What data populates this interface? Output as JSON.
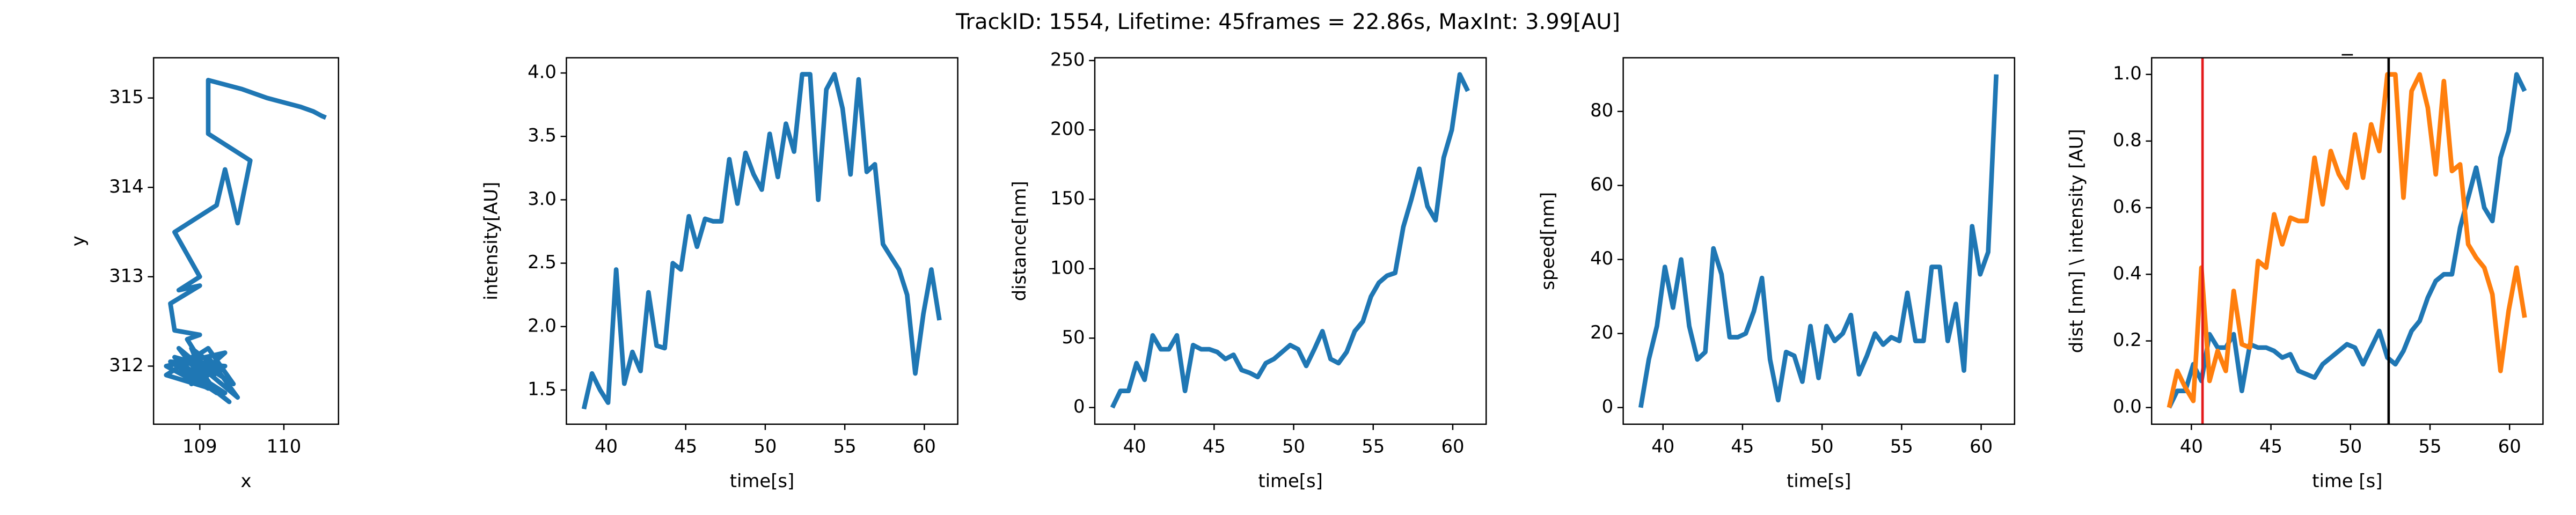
{
  "title": "TrackID: 1554, Lifetime: 45frames = 22.86s, MaxInt: 3.99[AU]",
  "chart_data": [
    {
      "type": "line",
      "xlabel": "x",
      "ylabel": "y",
      "x": [
        109.2,
        108.7,
        109.35,
        108.8,
        109.3,
        108.6,
        109.1,
        109.4,
        108.9,
        109.2,
        108.65,
        109.3,
        108.9,
        109.1,
        109.45,
        108.75,
        109.0,
        109.3,
        108.6,
        109.1,
        108.9,
        109.25,
        108.7,
        109.05,
        108.85,
        109.0,
        108.7,
        108.65,
        109.0,
        108.75,
        109.0,
        108.7,
        109.2,
        109.3,
        109.45,
        109.6,
        109.1,
        109.1,
        109.5,
        109.8,
        110.0,
        110.2,
        110.35,
        110.45,
        110.5
      ],
      "series": [
        {
          "color": "#1f77b4",
          "values": [
            311.9,
            312.1,
            311.6,
            312.0,
            311.7,
            311.9,
            312.2,
            311.8,
            312.1,
            311.7,
            312.05,
            312.0,
            311.8,
            312.1,
            311.65,
            312.2,
            311.9,
            312.15,
            312.0,
            311.75,
            312.2,
            311.95,
            312.1,
            312.0,
            312.3,
            312.35,
            312.4,
            312.7,
            312.9,
            312.85,
            313.0,
            313.5,
            313.8,
            314.2,
            313.6,
            314.3,
            314.6,
            315.2,
            315.1,
            315.0,
            314.95,
            314.9,
            314.85,
            314.8,
            314.78
          ]
        }
      ],
      "xlim": [
        108.45,
        110.65
      ],
      "xticks": [
        109,
        110
      ],
      "ylim": [
        311.35,
        315.45
      ],
      "yticks": [
        312,
        313,
        314,
        315
      ]
    },
    {
      "type": "line",
      "xlabel": "time[s]",
      "ylabel": "intensity[AU]",
      "x": [
        38.6,
        39.11,
        39.62,
        40.12,
        40.63,
        41.14,
        41.65,
        42.16,
        42.66,
        43.17,
        43.68,
        44.19,
        44.7,
        45.2,
        45.71,
        46.22,
        46.73,
        47.24,
        47.74,
        48.25,
        48.76,
        49.27,
        49.78,
        50.28,
        50.79,
        51.3,
        51.81,
        52.32,
        52.82,
        53.33,
        53.84,
        54.35,
        54.86,
        55.36,
        55.87,
        56.38,
        56.89,
        57.4,
        57.9,
        58.41,
        58.92,
        59.43,
        59.94,
        60.44,
        60.95
      ],
      "series": [
        {
          "color": "#1f77b4",
          "values": [
            1.35,
            1.63,
            1.5,
            1.4,
            2.45,
            1.55,
            1.8,
            1.65,
            2.27,
            1.85,
            1.83,
            2.5,
            2.45,
            2.87,
            2.63,
            2.85,
            2.83,
            2.83,
            3.32,
            2.97,
            3.37,
            3.2,
            3.08,
            3.52,
            3.18,
            3.6,
            3.38,
            3.99,
            3.99,
            3.0,
            3.87,
            3.99,
            3.72,
            3.2,
            3.95,
            3.22,
            3.28,
            2.65,
            2.55,
            2.45,
            2.25,
            1.63,
            2.1,
            2.45,
            2.05
          ]
        }
      ],
      "xlim": [
        37.5,
        62.1
      ],
      "xticks": [
        40,
        45,
        50,
        55,
        60
      ],
      "ylim": [
        1.23,
        4.12
      ],
      "yticks": [
        1.5,
        {
          "value": 2,
          "label": "2.0"
        },
        2.5,
        {
          "value": 3,
          "label": "3.0"
        },
        3.5,
        {
          "value": 4,
          "label": "4.0"
        }
      ]
    },
    {
      "type": "line",
      "xlabel": "time[s]",
      "ylabel": "distance[nm]",
      "x": [
        38.6,
        39.11,
        39.62,
        40.12,
        40.63,
        41.14,
        41.65,
        42.16,
        42.66,
        43.17,
        43.68,
        44.19,
        44.7,
        45.2,
        45.71,
        46.22,
        46.73,
        47.24,
        47.74,
        48.25,
        48.76,
        49.27,
        49.78,
        50.28,
        50.79,
        51.3,
        51.81,
        52.32,
        52.82,
        53.33,
        53.84,
        54.35,
        54.86,
        55.36,
        55.87,
        56.38,
        56.89,
        57.4,
        57.9,
        58.41,
        58.92,
        59.43,
        59.94,
        60.44,
        60.95
      ],
      "series": [
        {
          "color": "#1f77b4",
          "values": [
            0,
            12,
            12,
            32,
            20,
            52,
            42,
            42,
            52,
            12,
            45,
            42,
            42,
            40,
            35,
            38,
            27,
            25,
            22,
            32,
            35,
            40,
            45,
            42,
            30,
            42,
            55,
            35,
            32,
            40,
            55,
            62,
            80,
            90,
            95,
            97,
            130,
            150,
            172,
            145,
            135,
            180,
            200,
            240,
            228
          ]
        }
      ],
      "xlim": [
        37.5,
        62.1
      ],
      "xticks": [
        40,
        45,
        50,
        55,
        60
      ],
      "ylim": [
        -12,
        252
      ],
      "yticks": [
        0,
        50,
        100,
        150,
        200,
        250
      ]
    },
    {
      "type": "line",
      "xlabel": "time[s]",
      "ylabel": "speed[nm]",
      "x": [
        38.6,
        39.11,
        39.62,
        40.12,
        40.63,
        41.14,
        41.65,
        42.16,
        42.66,
        43.17,
        43.68,
        44.19,
        44.7,
        45.2,
        45.71,
        46.22,
        46.73,
        47.24,
        47.74,
        48.25,
        48.76,
        49.27,
        49.78,
        50.28,
        50.79,
        51.3,
        51.81,
        52.32,
        52.82,
        53.33,
        53.84,
        54.35,
        54.86,
        55.36,
        55.87,
        56.38,
        56.89,
        57.4,
        57.9,
        58.41,
        58.92,
        59.43,
        59.94,
        60.44,
        60.95
      ],
      "series": [
        {
          "color": "#1f77b4",
          "values": [
            0,
            13,
            22,
            38,
            27,
            40,
            22,
            13,
            15,
            43,
            36,
            19,
            19,
            20,
            26,
            35,
            13,
            2,
            15,
            14,
            7,
            22,
            8,
            22,
            18,
            20,
            25,
            9,
            14,
            20,
            17,
            19,
            18,
            31,
            18,
            18,
            38,
            38,
            18,
            28,
            10,
            49,
            36,
            42,
            90
          ]
        }
      ],
      "xlim": [
        37.5,
        62.1
      ],
      "xticks": [
        40,
        45,
        50,
        55,
        60
      ],
      "ylim": [
        -4.5,
        94.5
      ],
      "yticks": [
        0,
        20,
        40,
        60,
        80
      ]
    },
    {
      "type": "line",
      "title": "_",
      "xlabel": "time [s]",
      "ylabel": "dist [nm] \\ intensity [AU]",
      "x": [
        38.6,
        39.11,
        39.62,
        40.12,
        40.63,
        41.14,
        41.65,
        42.16,
        42.66,
        43.17,
        43.68,
        44.19,
        44.7,
        45.2,
        45.71,
        46.22,
        46.73,
        47.24,
        47.74,
        48.25,
        48.76,
        49.27,
        49.78,
        50.28,
        50.79,
        51.3,
        51.81,
        52.32,
        52.82,
        53.33,
        53.84,
        54.35,
        54.86,
        55.36,
        55.87,
        56.38,
        56.89,
        57.4,
        57.9,
        58.41,
        58.92,
        59.43,
        59.94,
        60.44,
        60.95
      ],
      "series": [
        {
          "color": "#1f77b4",
          "values": [
            0,
            0.05,
            0.05,
            0.13,
            0.08,
            0.22,
            0.18,
            0.18,
            0.22,
            0.05,
            0.19,
            0.18,
            0.18,
            0.17,
            0.15,
            0.16,
            0.11,
            0.1,
            0.09,
            0.13,
            0.15,
            0.17,
            0.19,
            0.18,
            0.13,
            0.18,
            0.23,
            0.15,
            0.13,
            0.17,
            0.23,
            0.26,
            0.33,
            0.38,
            0.4,
            0.4,
            0.54,
            0.63,
            0.72,
            0.6,
            0.56,
            0.75,
            0.83,
            1.0,
            0.95
          ]
        },
        {
          "color": "#ff7f0e",
          "values": [
            0,
            0.11,
            0.06,
            0.02,
            0.42,
            0.08,
            0.17,
            0.11,
            0.35,
            0.19,
            0.18,
            0.44,
            0.42,
            0.58,
            0.49,
            0.57,
            0.56,
            0.56,
            0.75,
            0.61,
            0.77,
            0.7,
            0.66,
            0.82,
            0.69,
            0.85,
            0.77,
            1.0,
            1.0,
            0.63,
            0.95,
            1.0,
            0.9,
            0.7,
            0.98,
            0.71,
            0.73,
            0.49,
            0.45,
            0.42,
            0.34,
            0.11,
            0.29,
            0.42,
            0.27
          ]
        }
      ],
      "vlines": [
        {
          "x": 40.7,
          "color": "#e41a1c"
        },
        {
          "x": 52.4,
          "color": "#000000"
        }
      ],
      "xlim": [
        37.5,
        62.1
      ],
      "xticks": [
        40,
        45,
        50,
        55,
        60
      ],
      "ylim": [
        -0.05,
        1.05
      ],
      "yticks": [
        {
          "value": 0,
          "label": "0.0"
        },
        0.2,
        0.4,
        0.6,
        0.8,
        {
          "value": 1,
          "label": "1.0"
        }
      ]
    }
  ]
}
